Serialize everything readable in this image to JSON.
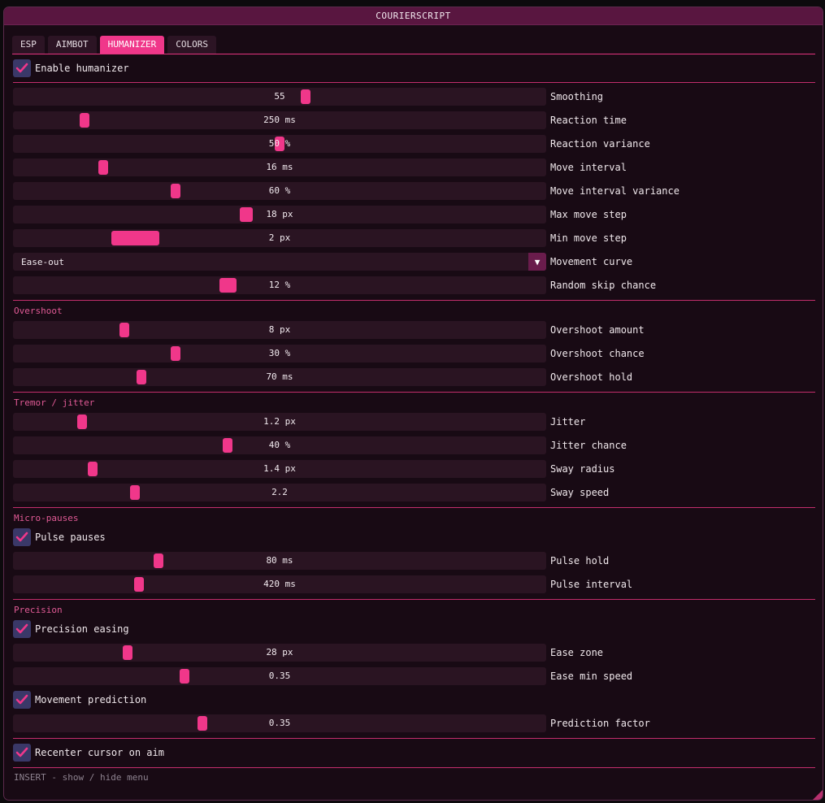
{
  "window": {
    "title": "COURIERSCRIPT"
  },
  "tabs": [
    {
      "label": "ESP"
    },
    {
      "label": "AIMBOT"
    },
    {
      "label": "HUMANIZER"
    },
    {
      "label": "COLORS"
    }
  ],
  "enable_humanizer": {
    "label": "Enable humanizer",
    "checked": true
  },
  "sliders": [
    {
      "label": "Smoothing",
      "value": "55",
      "fraction": 0.55
    },
    {
      "label": "Reaction time",
      "value": "250 ms",
      "fraction": 0.13
    },
    {
      "label": "Reaction variance",
      "value": "50 %",
      "fraction": 0.5
    },
    {
      "label": "Move interval",
      "value": "16 ms",
      "fraction": 0.17
    },
    {
      "label": "Move interval variance",
      "value": "60 %",
      "fraction": 0.3
    },
    {
      "label": "Max move step",
      "value": "18 px",
      "fraction": 0.44
    },
    {
      "label": "Min move step",
      "value": "2 px",
      "fraction": 0.2
    }
  ],
  "movement_curve": {
    "label": "Movement curve",
    "value": "Ease-out"
  },
  "random_skip": {
    "label": "Random skip chance",
    "value": "12 %",
    "fraction": 0.4
  },
  "overshoot": {
    "title": "Overshoot",
    "sliders": [
      {
        "label": "Overshoot amount",
        "value": "8 px",
        "fraction": 0.2
      },
      {
        "label": "Overshoot chance",
        "value": "30 %",
        "fraction": 0.3
      },
      {
        "label": "Overshoot hold",
        "value": "70 ms",
        "fraction": 0.23
      }
    ]
  },
  "tremor": {
    "title": "Tremor / jitter",
    "sliders": [
      {
        "label": "Jitter",
        "value": "1.2 px",
        "fraction": 0.12
      },
      {
        "label": "Jitter chance",
        "value": "40 %",
        "fraction": 0.4
      },
      {
        "label": "Sway radius",
        "value": "1.4 px",
        "fraction": 0.14
      },
      {
        "label": "Sway speed",
        "value": "2.2",
        "fraction": 0.22
      }
    ]
  },
  "micro_pauses": {
    "title": "Micro-pauses",
    "pulse_pauses": {
      "label": "Pulse pauses",
      "checked": true
    },
    "sliders": [
      {
        "label": "Pulse hold",
        "value": "80 ms",
        "fraction": 0.27
      },
      {
        "label": "Pulse interval",
        "value": "420 ms",
        "fraction": 0.23
      }
    ]
  },
  "precision": {
    "title": "Precision",
    "precision_easing": {
      "label": "Precision easing",
      "checked": true
    },
    "sliders": [
      {
        "label": "Ease zone",
        "value": "28 px",
        "fraction": 0.21
      },
      {
        "label": "Ease min speed",
        "value": "0.35",
        "fraction": 0.32
      }
    ],
    "movement_prediction": {
      "label": "Movement prediction",
      "checked": true
    },
    "prediction_slider": {
      "label": "Prediction factor",
      "value": "0.35",
      "fraction": 0.35
    }
  },
  "recenter": {
    "label": "Recenter cursor on aim",
    "checked": true
  },
  "footer": "INSERT - show / hide menu",
  "colors": {
    "accent": "#f0378a",
    "title_bar": "#591640",
    "background": "#180a14",
    "track": "#2a1422",
    "checkbox": "#3a3868"
  }
}
